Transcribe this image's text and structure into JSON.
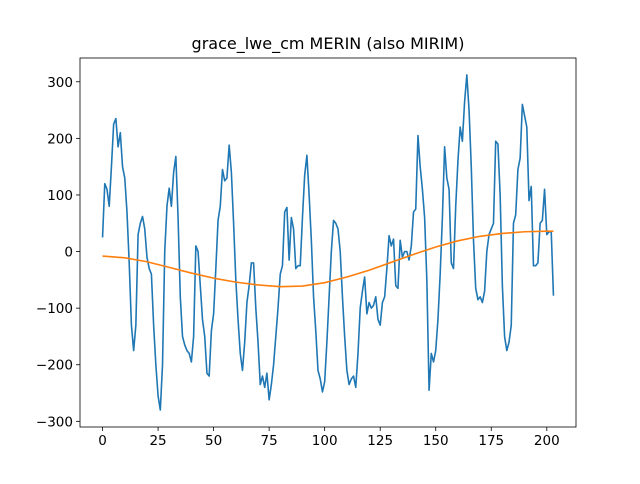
{
  "chart_data": {
    "type": "line",
    "title": "grace_lwe_cm MERIN (also MIRIM)",
    "series": [
      {
        "color": "#1f77b4",
        "values": [
          25,
          120,
          110,
          80,
          150,
          225,
          235,
          185,
          210,
          150,
          130,
          70,
          -20,
          -130,
          -175,
          -130,
          30,
          50,
          62,
          40,
          -10,
          -30,
          -40,
          -130,
          -200,
          -255,
          -280,
          -200,
          0,
          80,
          112,
          80,
          140,
          168,
          60,
          -80,
          -150,
          -165,
          -175,
          -180,
          -195,
          -150,
          10,
          0,
          -60,
          -120,
          -150,
          -215,
          -220,
          -140,
          -110,
          -30,
          55,
          80,
          145,
          125,
          130,
          188,
          140,
          50,
          -50,
          -120,
          -180,
          -210,
          -160,
          -90,
          -60,
          -20,
          -20,
          -100,
          -160,
          -235,
          -220,
          -240,
          -215,
          -262,
          -235,
          -200,
          -150,
          -100,
          -40,
          -25,
          70,
          78,
          -15,
          60,
          40,
          -30,
          -25,
          -25,
          60,
          135,
          170,
          100,
          20,
          -80,
          -140,
          -210,
          -225,
          -248,
          -230,
          -160,
          -80,
          0,
          55,
          50,
          40,
          0,
          -80,
          -150,
          -210,
          -235,
          -225,
          -220,
          -240,
          -180,
          -100,
          -70,
          -45,
          -110,
          -90,
          -100,
          -95,
          -80,
          -120,
          -130,
          -90,
          -80,
          -30,
          28,
          10,
          22,
          -60,
          -65,
          20,
          -10,
          0,
          0,
          -15,
          10,
          70,
          75,
          205,
          150,
          110,
          60,
          -50,
          -245,
          -180,
          -195,
          -175,
          -120,
          -40,
          60,
          185,
          130,
          110,
          -20,
          -30,
          80,
          160,
          220,
          195,
          265,
          312,
          250,
          150,
          20,
          -65,
          -85,
          -80,
          -90,
          -70,
          0,
          30,
          40,
          50,
          195,
          190,
          100,
          -60,
          -150,
          -175,
          -160,
          -130,
          50,
          65,
          145,
          165,
          260,
          240,
          220,
          90,
          115,
          -25,
          -25,
          -20,
          50,
          55,
          110,
          30,
          35,
          35,
          -78
        ]
      },
      {
        "color": "#ff7f0e",
        "x": [
          0,
          10,
          20,
          30,
          40,
          50,
          60,
          70,
          80,
          90,
          100,
          110,
          120,
          130,
          140,
          150,
          160,
          170,
          180,
          190,
          200,
          203
        ],
        "values": [
          -8,
          -11,
          -18,
          -28,
          -38,
          -47,
          -54,
          -59,
          -62,
          -61,
          -55,
          -45,
          -33,
          -19,
          -5,
          8,
          19,
          27,
          32,
          35,
          36,
          36
        ]
      }
    ],
    "xlim": [
      -10.15,
      213.15
    ],
    "xticks": [
      0,
      25,
      50,
      75,
      100,
      125,
      150,
      175,
      200
    ],
    "ylim": [
      -310,
      342
    ],
    "yticks": [
      {
        "value": -300,
        "label": "−300"
      },
      {
        "value": -200,
        "label": "−200"
      },
      {
        "value": -100,
        "label": "−100"
      },
      0,
      100,
      200,
      300
    ]
  }
}
